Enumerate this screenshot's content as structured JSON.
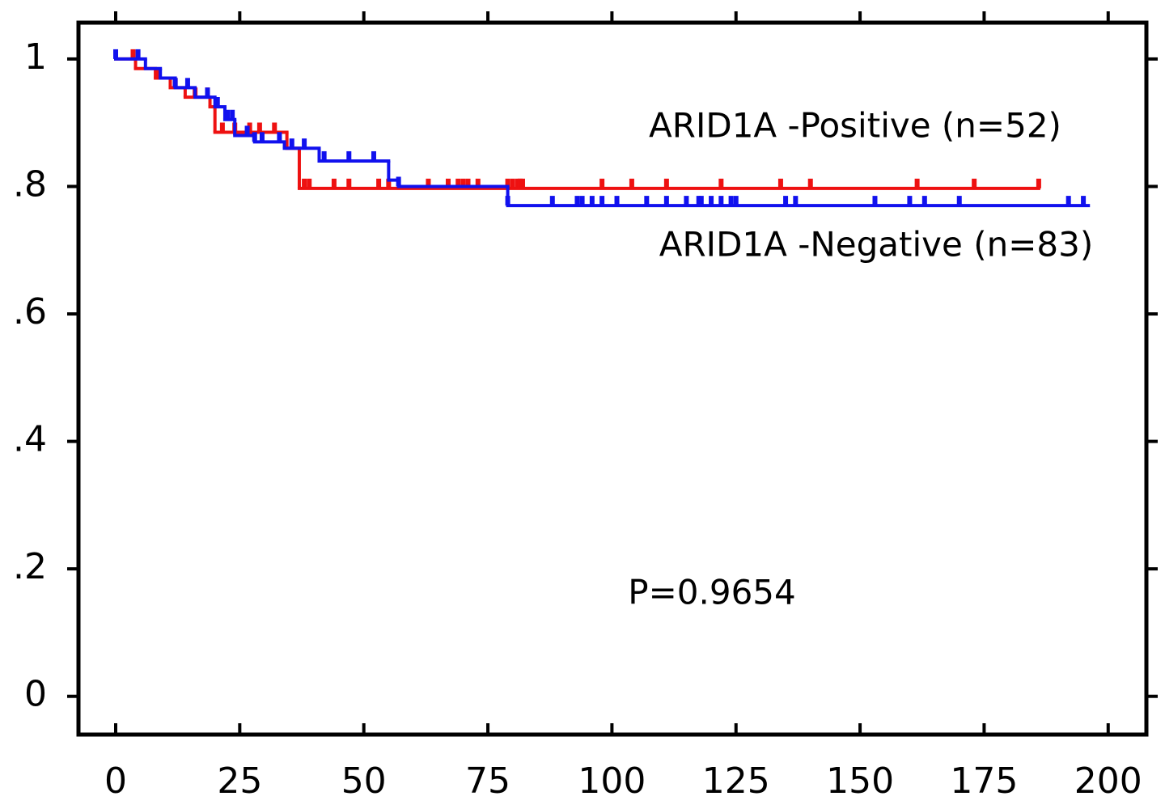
{
  "chart_data": {
    "type": "km",
    "xlim": [
      -7.5,
      207.7
    ],
    "xticks": [
      0,
      25,
      50,
      75,
      100,
      125,
      150,
      175,
      200
    ],
    "ylim": [
      -0.06,
      1.057
    ],
    "yticks": [
      0,
      {
        "value": 0.2,
        "label": ".2"
      },
      {
        "value": 0.4,
        "label": ".4"
      },
      {
        "value": 0.6,
        "label": ".6"
      },
      {
        "value": 0.8,
        "label": ".8"
      },
      1
    ],
    "annotation": "P=0.9654",
    "series": [
      {
        "name": "ARID1A -Positive (n=52)",
        "color": "#ee1111",
        "times": [
          0,
          4,
          8,
          11,
          14,
          19,
          20,
          34.5,
          37,
          186
        ],
        "values": [
          1,
          0.985,
          0.97,
          0.955,
          0.94,
          0.925,
          0.885,
          0.86,
          0.797,
          0.797
        ],
        "censored": [
          3.5,
          8.5,
          12,
          16,
          18.5,
          21.5,
          24,
          27,
          29,
          32,
          38,
          39,
          44,
          47,
          53,
          55,
          63,
          67,
          69,
          70,
          71,
          73,
          79,
          80,
          81,
          81.5,
          82,
          98,
          104,
          111,
          122,
          134,
          140,
          161.5,
          173,
          186
        ]
      },
      {
        "name": "ARID1A -Negative (n=83)",
        "color": "#1111ee",
        "times": [
          0,
          6,
          9,
          12,
          16,
          20,
          22,
          24,
          28,
          34,
          41,
          55,
          57,
          79,
          196
        ],
        "values": [
          1,
          0.985,
          0.97,
          0.955,
          0.94,
          0.925,
          0.905,
          0.88,
          0.87,
          0.86,
          0.84,
          0.81,
          0.8,
          0.77,
          0.77
        ],
        "censored": [
          0,
          4.5,
          12,
          14.5,
          18.5,
          20.5,
          22.5,
          23.5,
          26.5,
          28,
          29.5,
          33,
          35.5,
          38,
          42,
          47,
          52,
          57,
          79,
          88,
          93,
          94,
          96,
          98,
          101,
          107,
          111,
          115,
          117.5,
          118,
          120,
          122,
          124,
          125,
          135,
          137,
          153,
          160,
          163,
          170,
          192,
          195
        ]
      }
    ]
  }
}
